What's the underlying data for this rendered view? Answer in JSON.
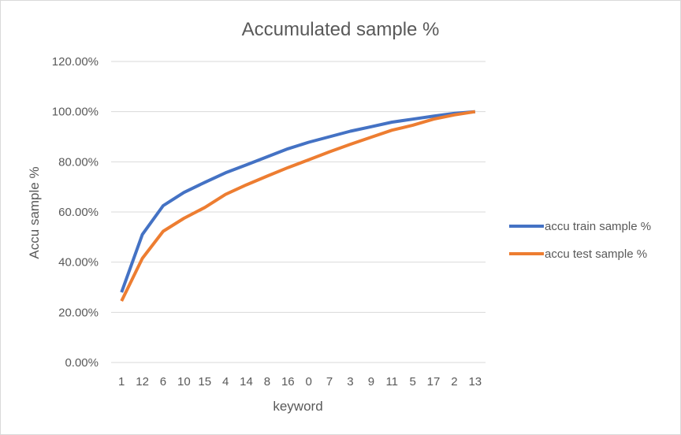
{
  "chart_data": {
    "type": "line",
    "title": "Accumulated sample %",
    "xlabel": "keyword",
    "ylabel": "Accu sample %",
    "categories": [
      "1",
      "12",
      "6",
      "10",
      "15",
      "4",
      "14",
      "8",
      "16",
      "0",
      "7",
      "3",
      "9",
      "11",
      "5",
      "17",
      "2",
      "13"
    ],
    "y_ticks": [
      "0.00%",
      "20.00%",
      "40.00%",
      "60.00%",
      "80.00%",
      "100.00%",
      "120.00%"
    ],
    "ylim": [
      0,
      120
    ],
    "grid": true,
    "legend_position": "right",
    "series": [
      {
        "name": "accu train sample %",
        "color": "#4472c4",
        "values": [
          28,
          51,
          62.5,
          67.8,
          71.8,
          75.6,
          78.8,
          82.0,
          85.2,
          87.8,
          90.0,
          92.2,
          94.0,
          95.8,
          97.0,
          98.2,
          99.3,
          100
        ]
      },
      {
        "name": "accu test sample %",
        "color": "#ed7d31",
        "values": [
          24.5,
          41.5,
          52.3,
          57.5,
          61.8,
          67.0,
          70.8,
          74.3,
          77.7,
          80.8,
          84.0,
          87.0,
          89.8,
          92.6,
          94.6,
          97.0,
          98.7,
          100
        ]
      }
    ]
  }
}
